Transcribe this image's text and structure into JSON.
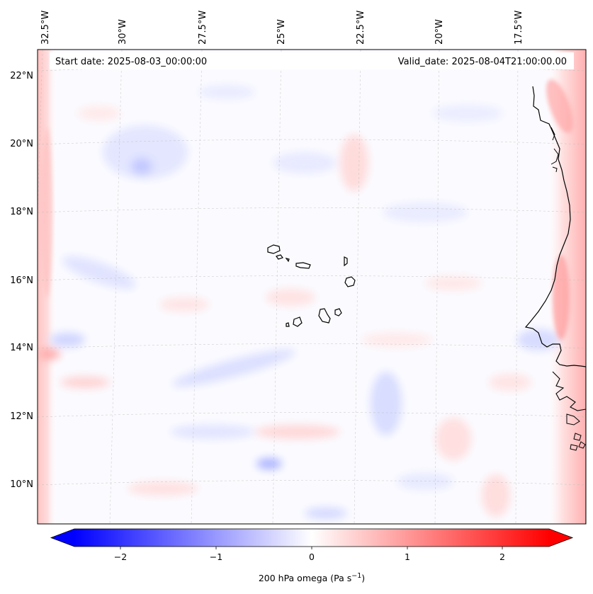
{
  "map": {
    "lon_ticks": [
      "32.5°W",
      "30°W",
      "27.5°W",
      "25°W",
      "22.5°W",
      "20°W",
      "17.5°W"
    ],
    "lat_ticks": [
      "22°N",
      "20°N",
      "18°N",
      "16°N",
      "14°N",
      "12°N",
      "10°N"
    ],
    "start_date": "Start date: 2025-08-03_00:00:00",
    "valid_date": "Valid_date: 2025-08-04T21:00:00.00",
    "gridlines": true,
    "coastline_color": "#000000",
    "field_colormap": "bwr"
  },
  "colorbar": {
    "label_prefix": "200 hPa omega (Pa s",
    "label_exponent": "−1",
    "label_suffix": ")",
    "ticks": [
      "−2",
      "−1",
      "0",
      "1",
      "2"
    ],
    "range": [
      -2.6,
      2.6
    ],
    "extend": "both",
    "low_color": "#0000ff",
    "mid_color": "#ffffff",
    "high_color": "#ff0000"
  }
}
